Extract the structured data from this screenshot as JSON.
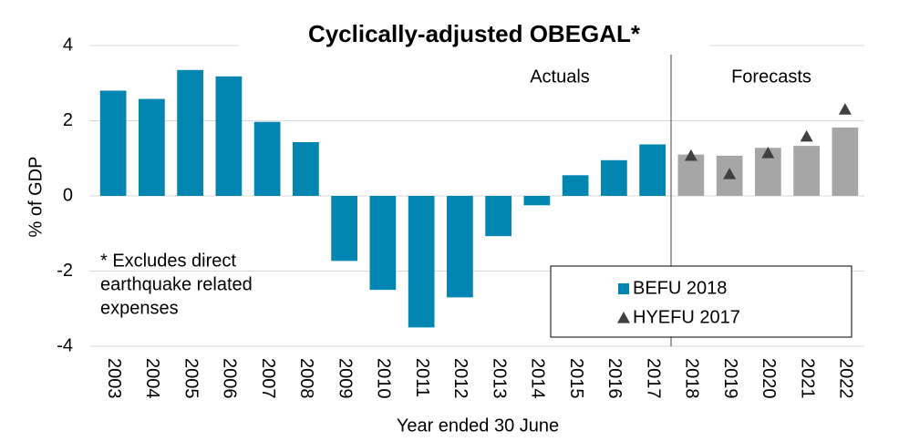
{
  "chart_data": {
    "type": "bar",
    "title": "Cyclically-adjusted OBEGAL*",
    "y_label": "% of GDP",
    "x_label": "Year ended 30 June",
    "annotations": [
      "Actuals",
      "Forecasts"
    ],
    "footnote": [
      "* Excludes direct",
      "earthquake related",
      "expenses"
    ],
    "categories": [
      "2003",
      "2004",
      "2005",
      "2006",
      "2007",
      "2008",
      "2009",
      "2010",
      "2011",
      "2012",
      "2013",
      "2014",
      "2015",
      "2016",
      "2017",
      "2018",
      "2019",
      "2020",
      "2021",
      "2022"
    ],
    "series": [
      {
        "name": "BEFU 2018",
        "type": "bar",
        "color": "#0086b0",
        "colors": [
          "#0086b0",
          "#0086b0",
          "#0086b0",
          "#0086b0",
          "#0086b0",
          "#0086b0",
          "#0086b0",
          "#0086b0",
          "#0086b0",
          "#0086b0",
          "#0086b0",
          "#0086b0",
          "#0086b0",
          "#0086b0",
          "#0086b0",
          "#a6a6a6",
          "#a6a6a6",
          "#a6a6a6",
          "#a6a6a6",
          "#a6a6a6"
        ],
        "values": [
          2.8,
          2.58,
          3.35,
          3.18,
          1.97,
          1.43,
          -1.73,
          -2.5,
          -3.5,
          -2.7,
          -1.07,
          -0.25,
          0.55,
          0.95,
          1.37,
          1.1,
          1.07,
          1.28,
          1.33,
          1.82
        ]
      },
      {
        "name": "HYEFU 2017",
        "type": "triangle",
        "color": "#404040",
        "values": [
          null,
          null,
          null,
          null,
          null,
          null,
          null,
          null,
          null,
          null,
          null,
          null,
          null,
          null,
          null,
          1.07,
          0.58,
          1.14,
          1.58,
          2.3
        ]
      }
    ],
    "ylim": [
      -4,
      4
    ],
    "yticks": [
      -4,
      -2,
      0,
      2,
      4
    ],
    "grid": true,
    "legend": "lower right"
  }
}
